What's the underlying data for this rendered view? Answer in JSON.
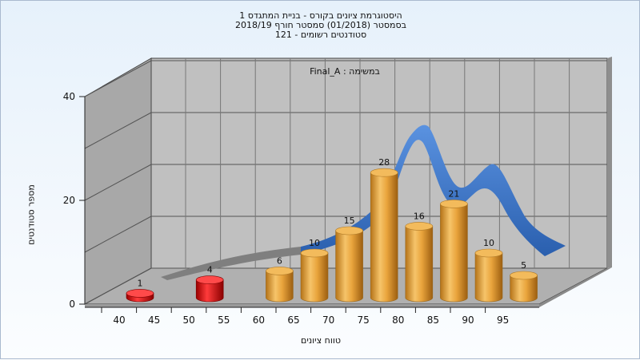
{
  "title_lines": [
    "היסטוגרמת ציונים בקורס - בניית המתגדס 1",
    "בסמסטר  (01/2018)  סמסטר חורף 2018/19",
    "סטודנטים רשומים - 121"
  ],
  "colors": {
    "low_bar": "#e01818",
    "bar": "#e8a53a",
    "curve": "#3a74c4",
    "curve_flat": "#7a7a7a"
  },
  "chart_data": {
    "type": "bar",
    "title": "היסטוגרמת ציונים בקורס - בניית המתגדס 1",
    "subtitle": "בסמסטר  (01/2018)  סמסטר חורף 2018/19 | סטודנטים רשומים - 121",
    "annotation": "Final_A : במשימה",
    "xlabel": "טווח ציונים",
    "ylabel": "מספר סטודנטים",
    "ylim": [
      0,
      40
    ],
    "y_ticks": [
      "0",
      "20",
      "40"
    ],
    "x_ticks": [
      "40",
      "45",
      "50",
      "55",
      "60",
      "65",
      "70",
      "75",
      "80",
      "85",
      "90",
      "95"
    ],
    "grid": true,
    "categories": [
      "40",
      "50",
      "60",
      "65",
      "70",
      "75",
      "80",
      "85",
      "90",
      "95"
    ],
    "values": [
      1,
      4,
      6,
      10,
      15,
      28,
      16,
      21,
      10,
      5
    ],
    "bar_colors": [
      "#e01818",
      "#e01818",
      "#e8a53a",
      "#e8a53a",
      "#e8a53a",
      "#e8a53a",
      "#e8a53a",
      "#e8a53a",
      "#e8a53a",
      "#e8a53a"
    ]
  }
}
